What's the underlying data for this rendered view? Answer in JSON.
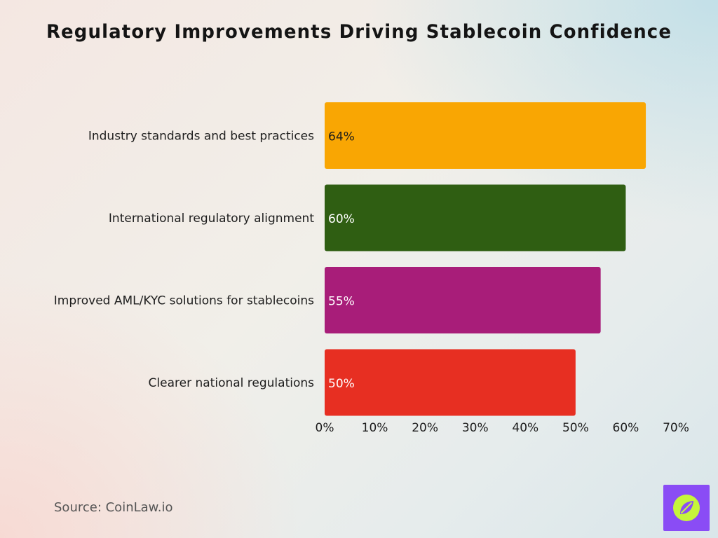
{
  "chart_data": {
    "type": "bar",
    "orientation": "horizontal",
    "title": "Regulatory Improvements Driving Stablecoin Confidence",
    "categories": [
      "Industry standards and best practices",
      "International regulatory alignment",
      "Improved AML/KYC solutions for stablecoins",
      "Clearer national regulations"
    ],
    "values": [
      64,
      60,
      55,
      50
    ],
    "value_labels": [
      "64%",
      "60%",
      "55%",
      "50%"
    ],
    "colors": [
      "#f9a603",
      "#2f5e12",
      "#a81d79",
      "#e72f22"
    ],
    "value_label_colors": [
      "#1d1d1d",
      "#ffffff",
      "#ffffff",
      "#ffffff"
    ],
    "xlim": [
      0,
      70
    ],
    "xticks": [
      0,
      10,
      20,
      30,
      40,
      50,
      60,
      70
    ],
    "xtick_labels": [
      "0%",
      "10%",
      "20%",
      "30%",
      "40%",
      "50%",
      "60%",
      "70%"
    ],
    "xlabel": "",
    "ylabel": "",
    "grid": false,
    "legend": "none"
  },
  "footer": {
    "source": "Source: CoinLaw.io"
  },
  "logo": {
    "icon": "compass-leaf-icon",
    "background": "#8a4cf5",
    "accent": "#c6f53a"
  }
}
